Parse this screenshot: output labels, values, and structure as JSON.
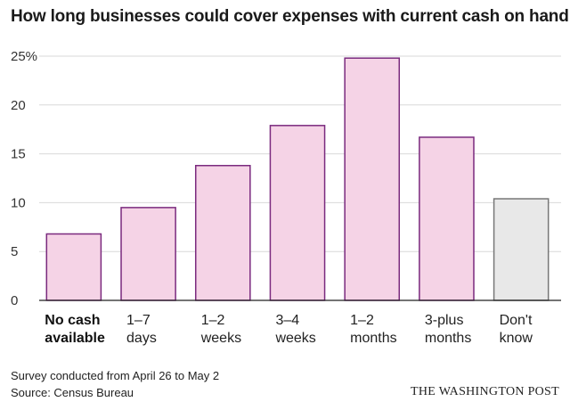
{
  "chart_data": {
    "type": "bar",
    "title": "How long businesses could cover expenses with current cash on hand",
    "categories": [
      [
        "No cash",
        "available"
      ],
      [
        "1–7",
        "days"
      ],
      [
        "1–2",
        "weeks"
      ],
      [
        "3–4",
        "weeks"
      ],
      [
        "1–2",
        "months"
      ],
      [
        "3-plus",
        "months"
      ],
      [
        "Don't",
        "know"
      ]
    ],
    "values": [
      6.8,
      9.5,
      13.8,
      17.9,
      24.8,
      16.7,
      10.4
    ],
    "ylim": [
      0,
      25
    ],
    "yticks": [
      0,
      5,
      10,
      15,
      20,
      25
    ],
    "ytick_labels": [
      "0",
      "5",
      "10",
      "15",
      "20",
      "25%"
    ],
    "xlabel": "",
    "ylabel": "",
    "grid": true,
    "highlight_first_label_bold": true,
    "colors": {
      "bar_fill": "#f5d3e6",
      "bar_stroke": "#7a2a7e",
      "unknown_fill": "#e8e8e8",
      "unknown_stroke": "#777777",
      "grid": "#d9d9d9"
    }
  },
  "footer": {
    "note": "Survey conducted from April 26 to May 2",
    "source": "Source: Census Bureau",
    "brand": "THE WASHINGTON POST"
  }
}
